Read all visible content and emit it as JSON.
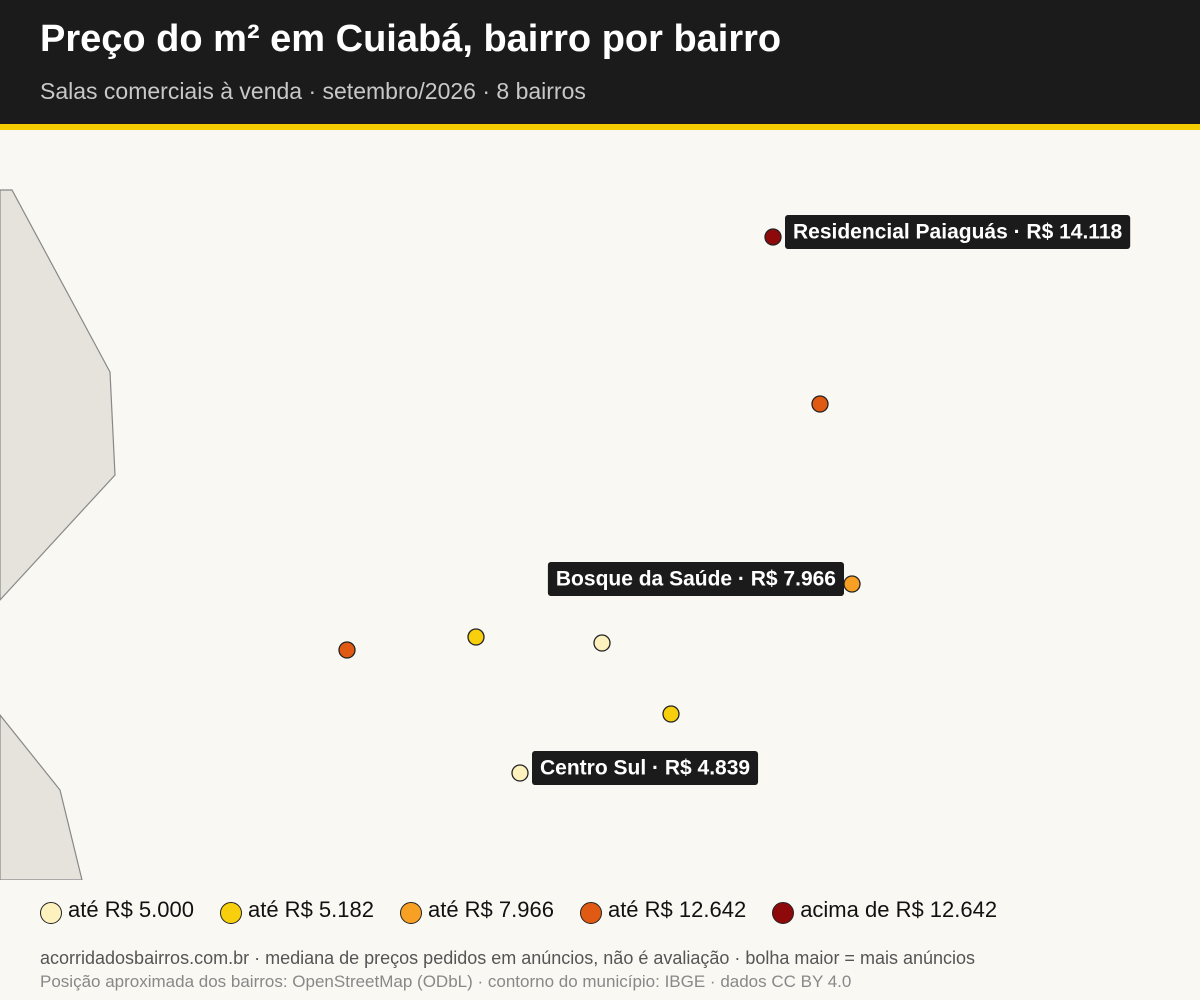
{
  "header": {
    "title": "Preço do m² em Cuiabá, bairro por bairro",
    "subtitle": "Salas comerciais à venda · setembro/2026 · 8 bairros"
  },
  "map": {
    "markers": [
      {
        "class": 4,
        "label": "Residencial Paiaguás · R$ 14.118"
      },
      {
        "class": 3
      },
      {
        "class": 2,
        "label": "Bosque da Saúde · R$ 7.966"
      },
      {
        "class": 3
      },
      {
        "class": 1
      },
      {
        "class": 0
      },
      {
        "class": 1
      },
      {
        "class": 0,
        "label": "Centro Sul · R$ 4.839"
      }
    ]
  },
  "legend": [
    {
      "label": "até R$ 5.000",
      "color": "#fdf1be"
    },
    {
      "label": "até R$ 5.182",
      "color": "#f7cf0c"
    },
    {
      "label": "até R$ 7.966",
      "color": "#f7a024"
    },
    {
      "label": "até R$ 12.642",
      "color": "#e05a14"
    },
    {
      "label": "acima de R$ 12.642",
      "color": "#8e0a0a"
    }
  ],
  "footer": {
    "line1": "acorridadosbairros.com.br · mediana de preços pedidos em anúncios, não é avaliação · bolha maior = mais anúncios",
    "line2": "Posição aproximada dos bairros: OpenStreetMap (ODbL) · contorno do município: IBGE · dados CC BY 4.0"
  }
}
